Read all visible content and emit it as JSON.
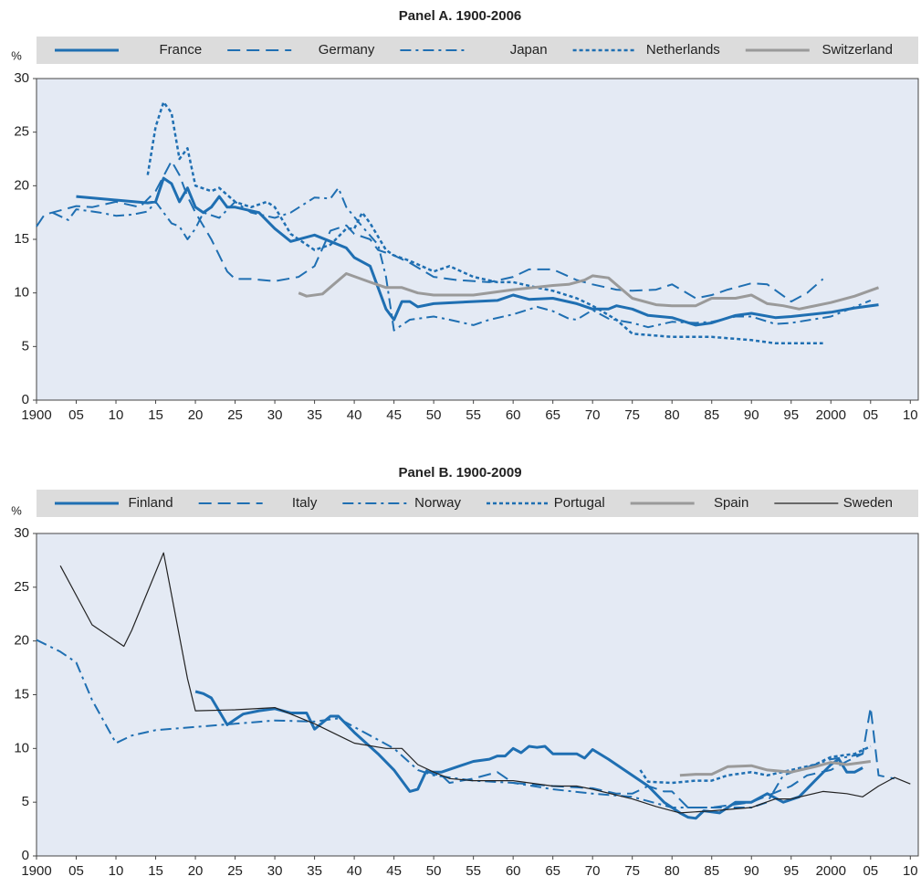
{
  "chart_data": [
    {
      "type": "line",
      "title": "Panel A. 1900-2006",
      "ylabel": "%",
      "xlim": [
        1900,
        2011
      ],
      "ylim": [
        0,
        30
      ],
      "yticks": [
        0,
        5,
        10,
        15,
        20,
        25,
        30
      ],
      "xticks": [
        1900,
        {
          "value": 1905,
          "label": "05"
        },
        {
          "value": 1910,
          "label": "10"
        },
        {
          "value": 1915,
          "label": "15"
        },
        {
          "value": 1920,
          "label": "20"
        },
        {
          "value": 1925,
          "label": "25"
        },
        {
          "value": 1930,
          "label": "30"
        },
        {
          "value": 1935,
          "label": "35"
        },
        {
          "value": 1940,
          "label": "40"
        },
        {
          "value": 1945,
          "label": "45"
        },
        {
          "value": 1950,
          "label": "50"
        },
        {
          "value": 1955,
          "label": "55"
        },
        {
          "value": 1960,
          "label": "60"
        },
        {
          "value": 1965,
          "label": "65"
        },
        {
          "value": 1970,
          "label": "70"
        },
        {
          "value": 1975,
          "label": "75"
        },
        {
          "value": 1980,
          "label": "80"
        },
        {
          "value": 1985,
          "label": "85"
        },
        {
          "value": 1990,
          "label": "90"
        },
        {
          "value": 1995,
          "label": "95"
        },
        2000,
        {
          "value": 2005,
          "label": "05"
        },
        {
          "value": 2010,
          "label": "10"
        }
      ],
      "series": [
        {
          "name": "France",
          "color": "#1f6fb2",
          "dash": "solid",
          "linewidth": 3,
          "x": [
            1905,
            1914,
            1915,
            1916,
            1917,
            1918,
            1919,
            1920,
            1921,
            1922,
            1923,
            1924,
            1925,
            1928,
            1930,
            1932,
            1935,
            1937,
            1939,
            1940,
            1942,
            1943,
            1944,
            1945,
            1946,
            1947,
            1948,
            1950,
            1955,
            1958,
            1960,
            1962,
            1965,
            1968,
            1970,
            1972,
            1973,
            1975,
            1977,
            1980,
            1983,
            1985,
            1988,
            1990,
            1993,
            1995,
            2000,
            2003,
            2006
          ],
          "values": [
            19,
            18.4,
            18.5,
            20.7,
            20.2,
            18.5,
            19.8,
            18,
            17.5,
            18,
            19,
            18,
            18,
            17.5,
            16,
            14.8,
            15.4,
            14.8,
            14.2,
            13.3,
            12.5,
            10.5,
            8.5,
            7.5,
            9.2,
            9.2,
            8.7,
            9,
            9.2,
            9.3,
            9.8,
            9.4,
            9.5,
            9,
            8.5,
            8.5,
            8.8,
            8.5,
            7.9,
            7.7,
            7,
            7.2,
            7.9,
            8.1,
            7.7,
            7.8,
            8.2,
            8.6,
            8.9
          ]
        },
        {
          "name": "Germany",
          "color": "#1f6fb2",
          "dash": "dashed",
          "linewidth": 2,
          "x": [
            1900,
            1901,
            1903,
            1905,
            1907,
            1910,
            1913,
            1915,
            1917,
            1918,
            1919,
            1920,
            1922,
            1924,
            1925,
            1927,
            1930,
            1933,
            1935,
            1937,
            1939,
            1940,
            1942,
            1943,
            1945,
            1947,
            1950,
            1953,
            1957,
            1960,
            1962,
            1965,
            1968,
            1970,
            1973,
            1975,
            1978,
            1980,
            1983,
            1985,
            1987,
            1990,
            1992,
            1995,
            1997,
            1999
          ],
          "values": [
            16.2,
            17.3,
            17.7,
            18.1,
            18,
            18.5,
            18,
            19.5,
            22.3,
            21,
            19,
            17.5,
            15,
            12,
            11.3,
            11.3,
            11.1,
            11.5,
            12.5,
            15.8,
            16.3,
            15.5,
            15,
            14,
            13.5,
            12.8,
            11.5,
            11.2,
            11,
            11.5,
            12.2,
            12.2,
            11.2,
            10.8,
            10.3,
            10.2,
            10.3,
            10.8,
            9.5,
            9.8,
            10.3,
            10.9,
            10.8,
            9.2,
            10,
            11.3
          ]
        },
        {
          "name": "Japan",
          "color": "#1f6fb2",
          "dash": "dashdot",
          "linewidth": 2,
          "x": [
            1902,
            1904,
            1905,
            1908,
            1910,
            1912,
            1914,
            1915,
            1917,
            1918,
            1919,
            1920,
            1921,
            1923,
            1925,
            1927,
            1930,
            1932,
            1935,
            1937,
            1938,
            1939,
            1941,
            1943,
            1944,
            1945,
            1947,
            1950,
            1952,
            1955,
            1957,
            1960,
            1963,
            1965,
            1967,
            1968,
            1970,
            1972,
            1975,
            1977,
            1980,
            1983,
            1985,
            1988,
            1990,
            1993,
            1995,
            2000,
            2005
          ],
          "values": [
            17.5,
            16.8,
            17.8,
            17.5,
            17.2,
            17.3,
            17.6,
            18.5,
            16.5,
            16.2,
            15,
            16,
            17.5,
            17,
            18.5,
            17.5,
            17,
            17.5,
            18.9,
            18.8,
            19.8,
            18,
            16.2,
            14.5,
            11.5,
            6.5,
            7.5,
            7.8,
            7.5,
            7,
            7.5,
            8,
            8.7,
            8.3,
            7.6,
            7.5,
            8.4,
            7.6,
            7.2,
            6.8,
            7.3,
            7.2,
            7.3,
            7.8,
            7.8,
            7.1,
            7.2,
            7.8,
            9.3
          ]
        },
        {
          "name": "Netherlands",
          "color": "#1f6fb2",
          "dash": "dotted",
          "linewidth": 2.5,
          "x": [
            1914,
            1915,
            1916,
            1917,
            1918,
            1919,
            1920,
            1922,
            1923,
            1925,
            1927,
            1929,
            1930,
            1932,
            1935,
            1937,
            1939,
            1940,
            1941,
            1942,
            1944,
            1945,
            1947,
            1950,
            1952,
            1955,
            1958,
            1960,
            1963,
            1965,
            1968,
            1970,
            1973,
            1975,
            1980,
            1985,
            1990,
            1993,
            1995,
            1999
          ],
          "values": [
            21,
            25.5,
            27.8,
            26.8,
            22.5,
            23.5,
            20,
            19.5,
            19.8,
            18.5,
            18,
            18.5,
            18,
            15.5,
            14,
            14.5,
            16,
            16,
            17.5,
            16.5,
            14,
            13.5,
            13,
            12,
            12.5,
            11.5,
            11,
            11,
            10.5,
            10.2,
            9.5,
            8.8,
            7.5,
            6.2,
            5.9,
            5.9,
            5.6,
            5.3,
            5.3,
            5.3
          ]
        },
        {
          "name": "Switzerland",
          "color": "#9a9a9a",
          "dash": "solid",
          "linewidth": 3,
          "x": [
            1933,
            1934,
            1936,
            1939,
            1942,
            1944,
            1946,
            1948,
            1950,
            1955,
            1960,
            1965,
            1967,
            1969,
            1970,
            1972,
            1975,
            1978,
            1980,
            1983,
            1985,
            1988,
            1990,
            1992,
            1994,
            1996,
            2000,
            2003,
            2006
          ],
          "values": [
            10,
            9.7,
            9.9,
            11.8,
            11,
            10.5,
            10.5,
            10,
            9.8,
            9.8,
            10.3,
            10.7,
            10.8,
            11.2,
            11.6,
            11.4,
            9.5,
            8.9,
            8.8,
            8.8,
            9.5,
            9.5,
            9.8,
            9,
            8.8,
            8.5,
            9.1,
            9.7,
            10.5
          ]
        }
      ]
    },
    {
      "type": "line",
      "title": "Panel B. 1900-2009",
      "ylabel": "%",
      "xlim": [
        1900,
        2011
      ],
      "ylim": [
        0,
        30
      ],
      "yticks": [
        0,
        5,
        10,
        15,
        20,
        25,
        30
      ],
      "xticks": [
        1900,
        {
          "value": 1905,
          "label": "05"
        },
        {
          "value": 1910,
          "label": "10"
        },
        {
          "value": 1915,
          "label": "15"
        },
        {
          "value": 1920,
          "label": "20"
        },
        {
          "value": 1925,
          "label": "25"
        },
        {
          "value": 1930,
          "label": "30"
        },
        {
          "value": 1935,
          "label": "35"
        },
        {
          "value": 1940,
          "label": "40"
        },
        {
          "value": 1945,
          "label": "45"
        },
        {
          "value": 1950,
          "label": "50"
        },
        {
          "value": 1955,
          "label": "55"
        },
        {
          "value": 1960,
          "label": "60"
        },
        {
          "value": 1965,
          "label": "65"
        },
        {
          "value": 1970,
          "label": "70"
        },
        {
          "value": 1975,
          "label": "75"
        },
        {
          "value": 1980,
          "label": "80"
        },
        {
          "value": 1985,
          "label": "85"
        },
        {
          "value": 1990,
          "label": "90"
        },
        {
          "value": 1995,
          "label": "95"
        },
        2000,
        {
          "value": 2005,
          "label": "05"
        },
        {
          "value": 2010,
          "label": "10"
        }
      ],
      "series": [
        {
          "name": "Finland",
          "color": "#1f6fb2",
          "dash": "solid",
          "linewidth": 3,
          "x": [
            1920,
            1921,
            1922,
            1924,
            1926,
            1928,
            1930,
            1932,
            1934,
            1935,
            1937,
            1938,
            1940,
            1943,
            1945,
            1947,
            1948,
            1949,
            1951,
            1953,
            1955,
            1957,
            1958,
            1959,
            1960,
            1961,
            1962,
            1963,
            1964,
            1965,
            1968,
            1969,
            1970,
            1972,
            1975,
            1977,
            1979,
            1980,
            1981,
            1982,
            1983,
            1984,
            1986,
            1988,
            1990,
            1992,
            1994,
            1996,
            1998,
            2000,
            2001,
            2002,
            2003,
            2004
          ],
          "values": [
            15.3,
            15.1,
            14.7,
            12.2,
            13.2,
            13.5,
            13.7,
            13.3,
            13.3,
            11.8,
            13,
            13,
            11.5,
            9.5,
            8,
            6,
            6.2,
            7.8,
            7.8,
            8.3,
            8.8,
            9,
            9.3,
            9.3,
            10,
            9.6,
            10.2,
            10.1,
            10.2,
            9.5,
            9.5,
            9.1,
            9.9,
            9,
            7.5,
            6.5,
            5,
            4.5,
            4,
            3.6,
            3.5,
            4.2,
            4,
            5,
            5,
            5.8,
            5,
            5.5,
            7,
            8.5,
            9,
            7.8,
            7.8,
            8.2
          ]
        },
        {
          "name": "Italy",
          "color": "#1f6fb2",
          "dash": "dashed",
          "linewidth": 2,
          "x": [
            1949,
            1950,
            1951,
            1952,
            1955,
            1958,
            1960,
            1965,
            1970,
            1973,
            1975,
            1977,
            1979,
            1980,
            1982,
            1985,
            1987,
            1990,
            1992,
            1995,
            1997,
            2000,
            2002,
            2004,
            2005,
            2006,
            2008
          ],
          "values": [
            8,
            7.6,
            7.5,
            6.8,
            7.2,
            7.8,
            6.8,
            6.5,
            6.3,
            5.8,
            5.8,
            6.5,
            6,
            6,
            4.5,
            4.5,
            4.7,
            5,
            5.6,
            6.5,
            7.5,
            8,
            8.8,
            9.5,
            13.8,
            7.5,
            7.2
          ]
        },
        {
          "name": "Norway",
          "color": "#1f6fb2",
          "dash": "dashdot",
          "linewidth": 2,
          "x": [
            1900,
            1903,
            1905,
            1907,
            1910,
            1912,
            1915,
            1920,
            1925,
            1930,
            1935,
            1938,
            1940,
            1945,
            1948,
            1950,
            1955,
            1960,
            1965,
            1970,
            1975,
            1980,
            1982,
            1985,
            1988,
            1990,
            1992,
            1994,
            1996,
            1998,
            2000,
            2002,
            2004
          ],
          "values": [
            20.1,
            19,
            18,
            14.5,
            10.5,
            11.2,
            11.7,
            12,
            12.3,
            12.6,
            12.5,
            12.8,
            12,
            10,
            8,
            7.5,
            7,
            6.8,
            6.2,
            5.8,
            5.5,
            4.5,
            4.5,
            4.5,
            4.5,
            4.5,
            5,
            7.5,
            8,
            8.5,
            9,
            9.2,
            9.5
          ]
        },
        {
          "name": "Portugal",
          "color": "#1f6fb2",
          "dash": "dotted",
          "linewidth": 2.5,
          "x": [
            1976,
            1977,
            1980,
            1983,
            1985,
            1987,
            1990,
            1992,
            1995,
            1998,
            2000,
            2003,
            2005
          ],
          "values": [
            8,
            6.9,
            6.8,
            7,
            7,
            7.5,
            7.8,
            7.5,
            8,
            8.5,
            9.2,
            9.5,
            10.2
          ]
        },
        {
          "name": "Spain",
          "color": "#9a9a9a",
          "dash": "solid",
          "linewidth": 3,
          "x": [
            1981,
            1983,
            1985,
            1987,
            1990,
            1992,
            1995,
            1998,
            2000,
            2002,
            2005
          ],
          "values": [
            7.5,
            7.6,
            7.6,
            8.3,
            8.4,
            8,
            7.8,
            8.3,
            8.7,
            8.5,
            8.8
          ]
        },
        {
          "name": "Sweden",
          "color": "#222222",
          "dash": "solid",
          "linewidth": 1.2,
          "x": [
            1903,
            1907,
            1911,
            1912,
            1916,
            1919,
            1920,
            1925,
            1930,
            1935,
            1940,
            1944,
            1946,
            1948,
            1950,
            1952,
            1955,
            1960,
            1965,
            1968,
            1970,
            1975,
            1978,
            1981,
            1985,
            1990,
            1993,
            1995,
            1999,
            2002,
            2004,
            2005,
            2006,
            2008,
            2010
          ],
          "values": [
            27,
            21.5,
            19.5,
            21,
            28.2,
            16.5,
            13.5,
            13.6,
            13.8,
            12.3,
            10.5,
            10,
            10,
            8.5,
            7.8,
            7.2,
            7,
            7,
            6.5,
            6.5,
            6.2,
            5.3,
            4.6,
            4,
            4.2,
            4.5,
            5.3,
            5.3,
            6,
            5.8,
            5.5,
            6,
            6.5,
            7.3,
            6.7
          ]
        }
      ]
    }
  ]
}
